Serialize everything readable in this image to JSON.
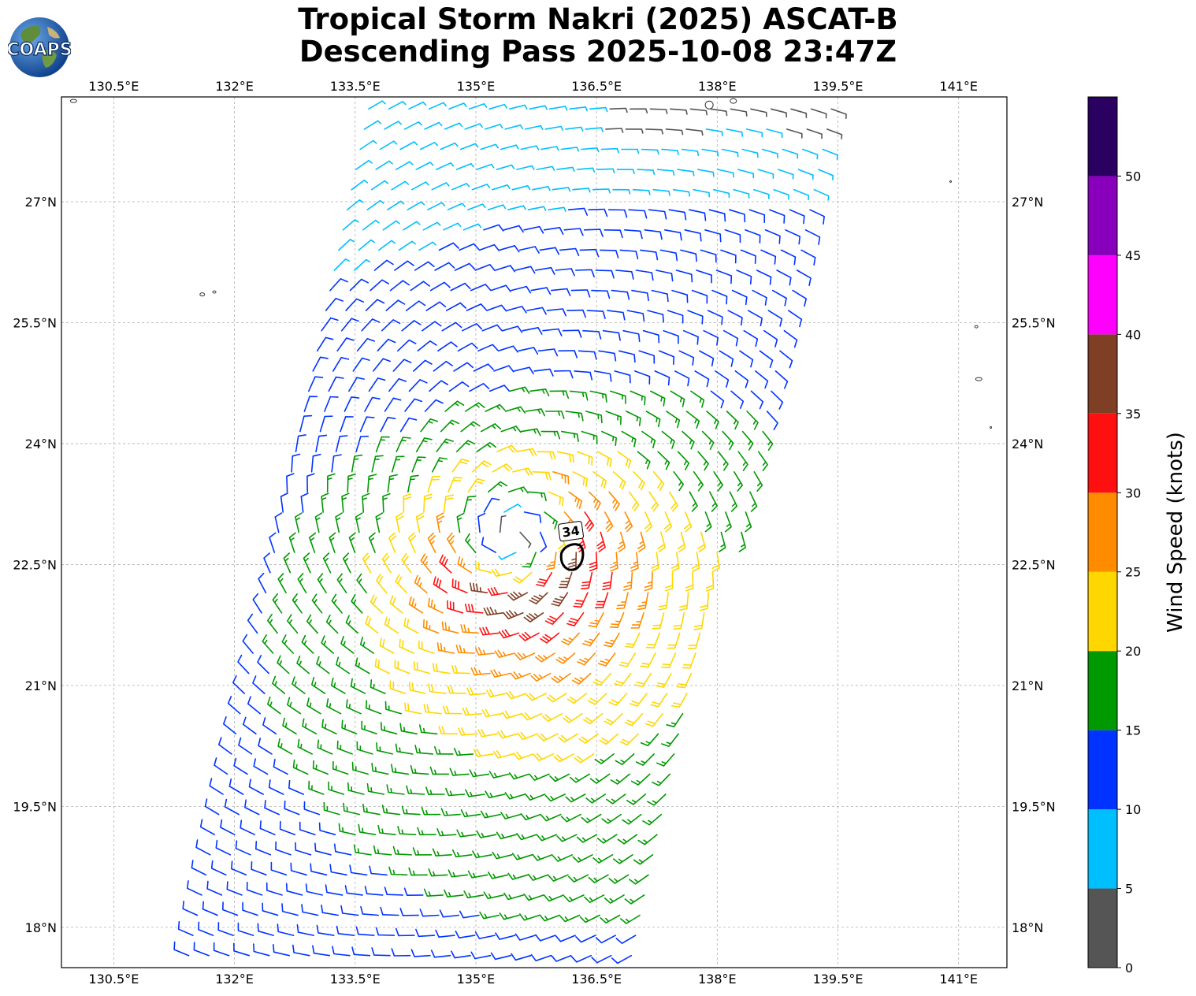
{
  "title": {
    "line1": "Tropical Storm Nakri (2025) ASCAT-B",
    "line2": "Descending Pass 2025-10-08 23:47Z"
  },
  "logo": {
    "text": "COAPS",
    "icon": "globe-icon"
  },
  "map": {
    "lon_range": [
      129.85,
      141.6
    ],
    "lat_range": [
      17.5,
      28.3
    ],
    "lon_ticks": [
      "130.5°E",
      "132°E",
      "133.5°E",
      "135°E",
      "136.5°E",
      "138°E",
      "139.5°E",
      "141°E"
    ],
    "lon_tick_values": [
      130.5,
      132,
      133.5,
      135,
      136.5,
      138,
      139.5,
      141
    ],
    "lat_ticks": [
      "27°N",
      "25.5°N",
      "24°N",
      "22.5°N",
      "21°N",
      "19.5°N",
      "18°N"
    ],
    "lat_tick_values": [
      27,
      25.5,
      24,
      22.5,
      21,
      19.5,
      18
    ],
    "grid": true,
    "gridline_style": "dashed gray",
    "storm_center": {
      "lon": 135.45,
      "lat": 22.85
    },
    "contour": {
      "label": "34",
      "lon": 136.2,
      "lat": 22.6
    }
  },
  "colorbar": {
    "title": "Wind Speed (knots)",
    "tick_labels": [
      "0",
      "5",
      "10",
      "15",
      "20",
      "25",
      "30",
      "35",
      "40",
      "45",
      "50"
    ],
    "bins": [
      {
        "range": [
          0,
          5
        ],
        "color": "#555555"
      },
      {
        "range": [
          5,
          10
        ],
        "color": "#00bfff"
      },
      {
        "range": [
          10,
          15
        ],
        "color": "#0033ff"
      },
      {
        "range": [
          15,
          20
        ],
        "color": "#009900"
      },
      {
        "range": [
          20,
          25
        ],
        "color": "#ffd700"
      },
      {
        "range": [
          25,
          30
        ],
        "color": "#ff8c00"
      },
      {
        "range": [
          30,
          35
        ],
        "color": "#ff1010"
      },
      {
        "range": [
          35,
          40
        ],
        "color": "#7f3f24"
      },
      {
        "range": [
          40,
          45
        ],
        "color": "#ff00ff"
      },
      {
        "range": [
          45,
          50
        ],
        "color": "#8800bb"
      },
      {
        "range": [
          50,
          55
        ],
        "color": "#2a0060"
      }
    ]
  },
  "chart_data": {
    "type": "wind-barbs",
    "swath": {
      "description_units": "degrees",
      "corners": [
        [
          133.6,
          28.3
        ],
        [
          139.7,
          28.3
        ],
        [
          137.0,
          17.5
        ],
        [
          131.3,
          17.5
        ]
      ]
    },
    "vortex_center": [
      135.45,
      22.85
    ],
    "max_wind_knots": 35,
    "wind_units": "knots"
  }
}
